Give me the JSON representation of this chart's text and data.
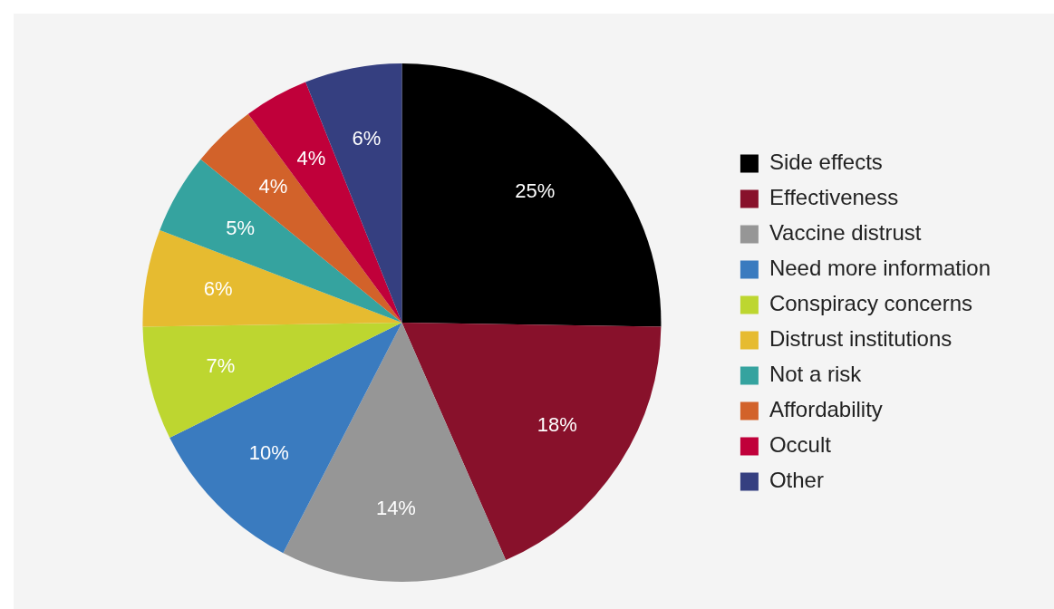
{
  "chart_data": {
    "type": "pie",
    "categories": [
      "Side effects",
      "Effectiveness",
      "Vaccine distrust",
      "Need more information",
      "Conspiracy concerns",
      "Distrust institutions",
      "Not a risk",
      "Affordability",
      "Occult",
      "Other"
    ],
    "values": [
      25,
      18,
      14,
      10,
      7,
      6,
      5,
      4,
      4,
      6
    ],
    "value_labels": [
      "25%",
      "18%",
      "14%",
      "10%",
      "7%",
      "6%",
      "5%",
      "4%",
      "4%",
      "6%"
    ],
    "colors": [
      "#000000",
      "#88112b",
      "#969696",
      "#3a7bbf",
      "#bdd630",
      "#e6bb30",
      "#35a39f",
      "#d2622a",
      "#c0003a",
      "#353f80"
    ],
    "legend": "right"
  }
}
